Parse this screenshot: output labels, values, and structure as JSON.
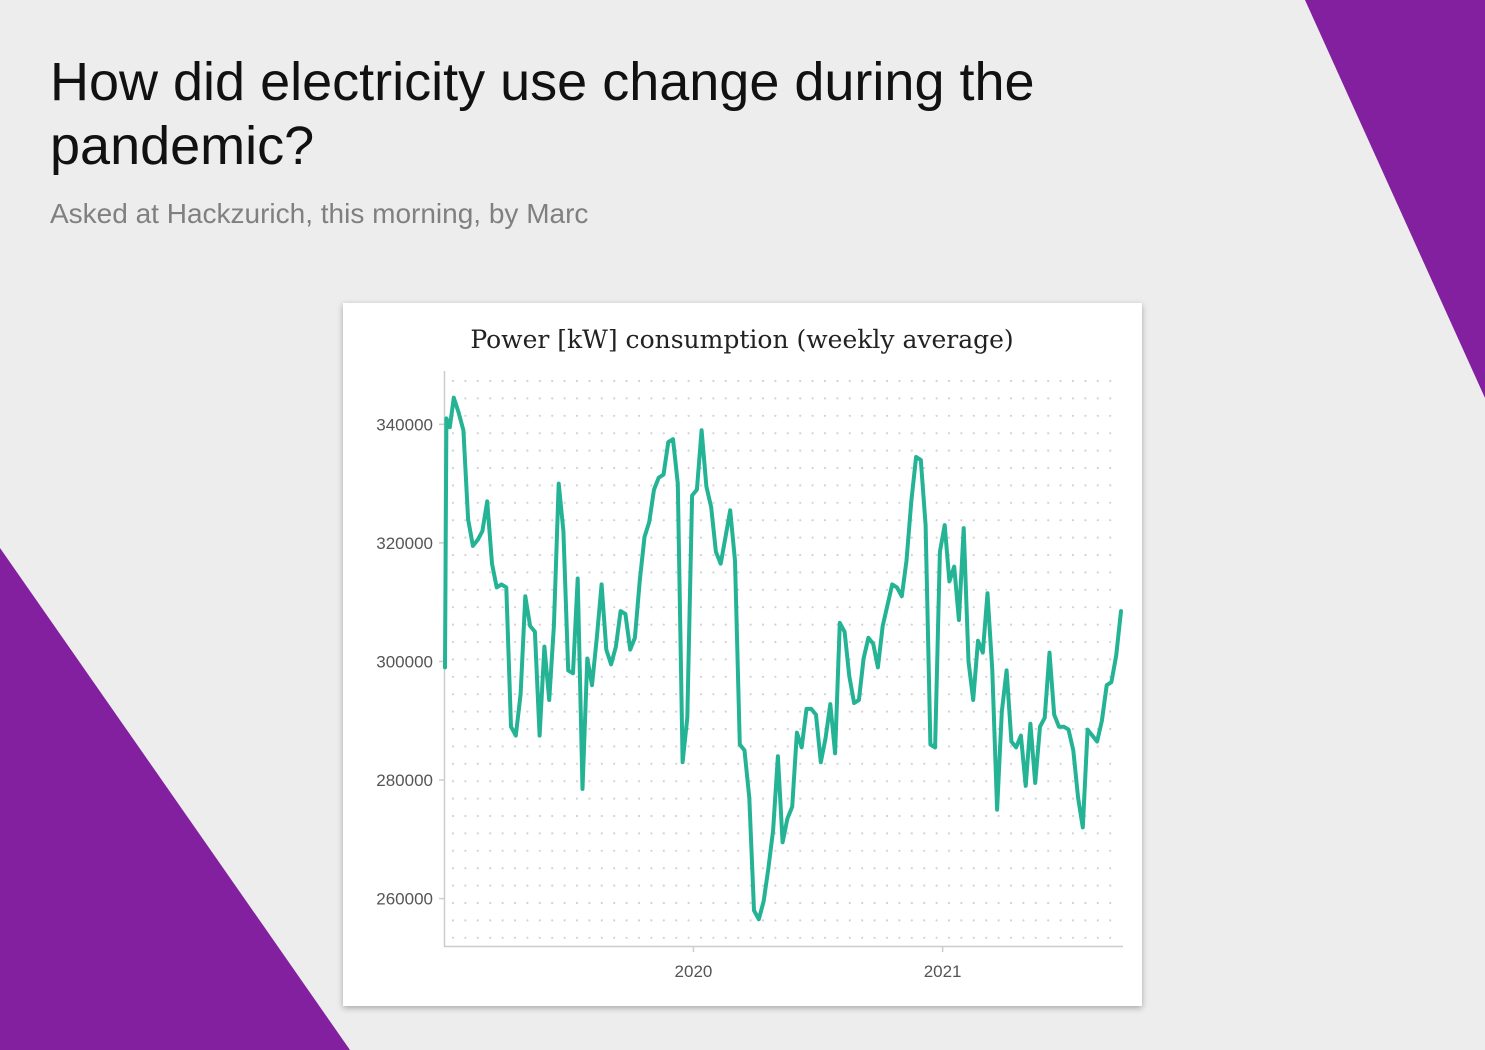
{
  "slide": {
    "title": "How did electricity use change during the pandemic?",
    "subtitle": "Asked at Hackzurich, this morning, by Marc"
  },
  "colors": {
    "background": "#ededed",
    "accent": "#8220a0",
    "series": "#24b394",
    "card": "#ffffff"
  },
  "chart_data": {
    "type": "line",
    "title": "Power [kW] consumption (weekly average)",
    "xlabel": "",
    "ylabel": "",
    "grid": "dotted",
    "legend": "none",
    "xlim": [
      "2019-01-01",
      "2021-09-23"
    ],
    "ylim": [
      252000,
      349000
    ],
    "y_ticks": [
      260000,
      280000,
      300000,
      320000,
      340000
    ],
    "x_ticks": [
      {
        "label": "2020",
        "date": "2020-01-01"
      },
      {
        "label": "2021",
        "date": "2021-01-01"
      }
    ],
    "series": [
      {
        "color": "#24b394",
        "points": [
          [
            "2019-01-01",
            299000
          ],
          [
            "2019-01-03",
            341000
          ],
          [
            "2019-01-08",
            339500
          ],
          [
            "2019-01-14",
            344500
          ],
          [
            "2019-01-21",
            342000
          ],
          [
            "2019-01-28",
            339000
          ],
          [
            "2019-02-04",
            324000
          ],
          [
            "2019-02-11",
            319500
          ],
          [
            "2019-02-18",
            320500
          ],
          [
            "2019-02-25",
            322000
          ],
          [
            "2019-03-04",
            327000
          ],
          [
            "2019-03-11",
            316500
          ],
          [
            "2019-03-18",
            312500
          ],
          [
            "2019-03-25",
            313000
          ],
          [
            "2019-04-01",
            312500
          ],
          [
            "2019-04-08",
            289000
          ],
          [
            "2019-04-15",
            287500
          ],
          [
            "2019-04-22",
            294500
          ],
          [
            "2019-04-29",
            311000
          ],
          [
            "2019-05-06",
            306000
          ],
          [
            "2019-05-13",
            305000
          ],
          [
            "2019-05-20",
            287500
          ],
          [
            "2019-05-27",
            302500
          ],
          [
            "2019-06-03",
            293500
          ],
          [
            "2019-06-10",
            306000
          ],
          [
            "2019-06-17",
            330000
          ],
          [
            "2019-06-24",
            322000
          ],
          [
            "2019-07-01",
            298500
          ],
          [
            "2019-07-08",
            298000
          ],
          [
            "2019-07-15",
            314000
          ],
          [
            "2019-07-22",
            278500
          ],
          [
            "2019-07-29",
            300500
          ],
          [
            "2019-08-05",
            296000
          ],
          [
            "2019-08-12",
            304000
          ],
          [
            "2019-08-19",
            313000
          ],
          [
            "2019-08-26",
            302000
          ],
          [
            "2019-09-02",
            299500
          ],
          [
            "2019-09-09",
            302500
          ],
          [
            "2019-09-16",
            308500
          ],
          [
            "2019-09-23",
            308000
          ],
          [
            "2019-09-30",
            302000
          ],
          [
            "2019-10-07",
            304000
          ],
          [
            "2019-10-14",
            313500
          ],
          [
            "2019-10-21",
            321000
          ],
          [
            "2019-10-28",
            323500
          ],
          [
            "2019-11-04",
            329000
          ],
          [
            "2019-11-11",
            331000
          ],
          [
            "2019-11-18",
            331500
          ],
          [
            "2019-11-25",
            337000
          ],
          [
            "2019-12-02",
            337500
          ],
          [
            "2019-12-09",
            330000
          ],
          [
            "2019-12-16",
            283000
          ],
          [
            "2019-12-23",
            290500
          ],
          [
            "2019-12-30",
            328000
          ],
          [
            "2020-01-06",
            329000
          ],
          [
            "2020-01-13",
            339000
          ],
          [
            "2020-01-20",
            329500
          ],
          [
            "2020-01-27",
            326000
          ],
          [
            "2020-02-03",
            318500
          ],
          [
            "2020-02-10",
            316500
          ],
          [
            "2020-02-17",
            321000
          ],
          [
            "2020-02-24",
            325500
          ],
          [
            "2020-03-02",
            317000
          ],
          [
            "2020-03-09",
            286000
          ],
          [
            "2020-03-16",
            285000
          ],
          [
            "2020-03-23",
            277000
          ],
          [
            "2020-03-30",
            258000
          ],
          [
            "2020-04-06",
            256500
          ],
          [
            "2020-04-13",
            259500
          ],
          [
            "2020-04-20",
            265000
          ],
          [
            "2020-04-27",
            271500
          ],
          [
            "2020-05-04",
            284000
          ],
          [
            "2020-05-11",
            269500
          ],
          [
            "2020-05-18",
            273500
          ],
          [
            "2020-05-25",
            275500
          ],
          [
            "2020-06-01",
            288000
          ],
          [
            "2020-06-08",
            285500
          ],
          [
            "2020-06-15",
            292000
          ],
          [
            "2020-06-22",
            292000
          ],
          [
            "2020-06-29",
            291000
          ],
          [
            "2020-07-06",
            283000
          ],
          [
            "2020-07-13",
            287000
          ],
          [
            "2020-07-20",
            292800
          ],
          [
            "2020-07-27",
            284500
          ],
          [
            "2020-08-03",
            306500
          ],
          [
            "2020-08-10",
            305000
          ],
          [
            "2020-08-17",
            297500
          ],
          [
            "2020-08-24",
            293000
          ],
          [
            "2020-08-31",
            293500
          ],
          [
            "2020-09-07",
            300500
          ],
          [
            "2020-09-14",
            304000
          ],
          [
            "2020-09-21",
            303000
          ],
          [
            "2020-09-28",
            299000
          ],
          [
            "2020-10-05",
            306000
          ],
          [
            "2020-10-12",
            309500
          ],
          [
            "2020-10-19",
            313000
          ],
          [
            "2020-10-26",
            312500
          ],
          [
            "2020-11-02",
            311000
          ],
          [
            "2020-11-09",
            317000
          ],
          [
            "2020-11-16",
            327000
          ],
          [
            "2020-11-23",
            334500
          ],
          [
            "2020-11-30",
            334000
          ],
          [
            "2020-12-07",
            323000
          ],
          [
            "2020-12-14",
            286000
          ],
          [
            "2020-12-21",
            285500
          ],
          [
            "2020-12-28",
            318500
          ],
          [
            "2021-01-04",
            323000
          ],
          [
            "2021-01-11",
            313500
          ],
          [
            "2021-01-18",
            316000
          ],
          [
            "2021-01-25",
            307000
          ],
          [
            "2021-02-01",
            322500
          ],
          [
            "2021-02-08",
            300000
          ],
          [
            "2021-02-15",
            293500
          ],
          [
            "2021-02-22",
            303500
          ],
          [
            "2021-03-01",
            301500
          ],
          [
            "2021-03-08",
            311500
          ],
          [
            "2021-03-15",
            298500
          ],
          [
            "2021-03-22",
            275000
          ],
          [
            "2021-03-29",
            291500
          ],
          [
            "2021-04-05",
            298500
          ],
          [
            "2021-04-12",
            286500
          ],
          [
            "2021-04-19",
            285500
          ],
          [
            "2021-04-26",
            287500
          ],
          [
            "2021-05-03",
            279000
          ],
          [
            "2021-05-10",
            289500
          ],
          [
            "2021-05-17",
            279500
          ],
          [
            "2021-05-24",
            289000
          ],
          [
            "2021-05-31",
            290500
          ],
          [
            "2021-06-07",
            301500
          ],
          [
            "2021-06-14",
            291000
          ],
          [
            "2021-06-21",
            289000
          ],
          [
            "2021-06-28",
            289000
          ],
          [
            "2021-07-05",
            288500
          ],
          [
            "2021-07-12",
            285000
          ],
          [
            "2021-07-19",
            277000
          ],
          [
            "2021-07-26",
            272000
          ],
          [
            "2021-08-02",
            288500
          ],
          [
            "2021-08-09",
            287500
          ],
          [
            "2021-08-16",
            286500
          ],
          [
            "2021-08-23",
            290000
          ],
          [
            "2021-08-30",
            296000
          ],
          [
            "2021-09-06",
            296500
          ],
          [
            "2021-09-13",
            301000
          ],
          [
            "2021-09-20",
            308500
          ]
        ]
      }
    ]
  }
}
